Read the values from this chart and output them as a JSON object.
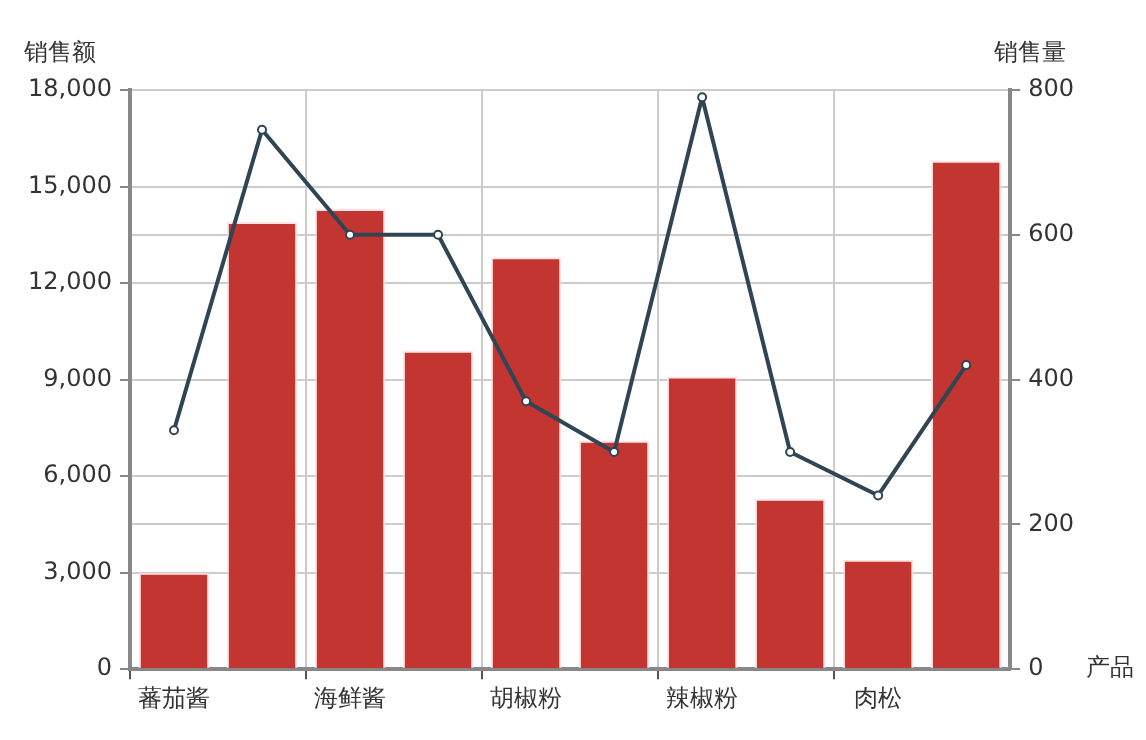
{
  "chart_data": {
    "type": "bar",
    "ylabel": "销售额",
    "y2label": "销售量",
    "xlabel": "产品",
    "categories": [
      "蕃茄酱",
      null,
      "海鲜酱",
      null,
      "胡椒粉",
      null,
      "辣椒粉",
      null,
      "肉松",
      null
    ],
    "series": [
      {
        "color": "#c23531",
        "values": [
          3000,
          13900,
          14300,
          9900,
          12800,
          7100,
          9100,
          5300,
          3400,
          15800
        ]
      },
      {
        "type": "line",
        "axis": "y2",
        "color": "#2f4554",
        "values": [
          330,
          745,
          600,
          600,
          370,
          300,
          790,
          300,
          240,
          420
        ]
      }
    ],
    "ylim": [
      0,
      18000
    ],
    "yticks": [
      {
        "value": 0,
        "label": "0"
      },
      {
        "value": 3000,
        "label": "3,000"
      },
      {
        "value": 6000,
        "label": "6,000"
      },
      {
        "value": 9000,
        "label": "9,000"
      },
      {
        "value": 12000,
        "label": "12,000"
      },
      {
        "value": 15000,
        "label": "15,000"
      },
      {
        "value": 18000,
        "label": "18,000"
      }
    ],
    "y2lim": [
      0,
      800
    ],
    "y2ticks": [
      0,
      200,
      400,
      600,
      800
    ],
    "grid": true,
    "legend": false,
    "marker": "circle",
    "line_style": "solid"
  }
}
